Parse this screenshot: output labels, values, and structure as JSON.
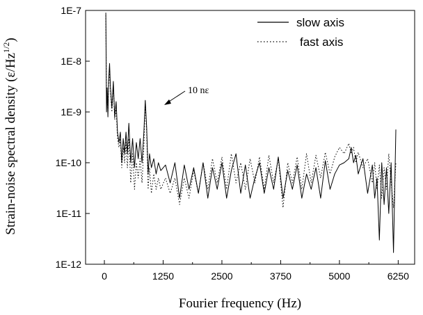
{
  "chart_data": {
    "type": "line",
    "title": "",
    "xlabel": "Fourier frequency (Hz)",
    "ylabel": "Strain-noise spectral density (ε/Hz",
    "ylabel_exp": "1/2",
    "ylabel_close": ")",
    "xlim": [
      -400,
      6600
    ],
    "ylim_log10": [
      -12,
      -7
    ],
    "yscale": "log",
    "xticks": [
      0,
      1250,
      2500,
      3750,
      5000,
      6250
    ],
    "xtick_labels": [
      "0",
      "1250",
      "2500",
      "3750",
      "5000",
      "6250"
    ],
    "yticks_log10": [
      -12,
      -11,
      -10,
      -9,
      -8,
      -7
    ],
    "ytick_labels": [
      "1E-12",
      "1E-11",
      "1E-10",
      "1E-9",
      "1E-8",
      "1E-7"
    ],
    "grid": false,
    "legend_position": "top-right",
    "annotation": {
      "text": "10 nε",
      "x": 900,
      "y": 1.7e-09
    },
    "series": [
      {
        "name": "slow axis",
        "style": "solid",
        "x": [
          30,
          45,
          60,
          75,
          90,
          110,
          130,
          160,
          190,
          220,
          250,
          280,
          310,
          340,
          370,
          400,
          430,
          460,
          490,
          520,
          560,
          600,
          640,
          680,
          720,
          760,
          800,
          840,
          870,
          900,
          930,
          960,
          1000,
          1050,
          1100,
          1150,
          1200,
          1300,
          1400,
          1500,
          1600,
          1700,
          1800,
          1900,
          2000,
          2100,
          2200,
          2300,
          2400,
          2500,
          2600,
          2700,
          2800,
          2900,
          3000,
          3100,
          3200,
          3300,
          3400,
          3500,
          3600,
          3700,
          3800,
          3900,
          4000,
          4100,
          4200,
          4300,
          4400,
          4500,
          4600,
          4700,
          4800,
          4900,
          5000,
          5100,
          5200,
          5250,
          5300,
          5350,
          5400,
          5500,
          5600,
          5700,
          5750,
          5800,
          5850,
          5900,
          5950,
          6000,
          6050,
          6100,
          6150,
          6200
        ],
        "y": [
          9e-08,
          1e-09,
          3e-09,
          8e-10,
          4e-09,
          9e-09,
          3e-09,
          1.2e-09,
          4e-09,
          8e-10,
          1.6e-09,
          4e-10,
          2.5e-10,
          4e-10,
          1e-10,
          3e-10,
          1.5e-10,
          4e-10,
          1.5e-10,
          6e-10,
          1e-10,
          3e-10,
          8e-11,
          2.5e-10,
          1.2e-10,
          3e-10,
          1e-10,
          4e-10,
          1.7e-09,
          5e-10,
          6e-11,
          1.5e-10,
          8e-11,
          1.2e-10,
          6e-11,
          1e-10,
          7e-11,
          9e-11,
          4e-11,
          1e-10,
          2e-11,
          9e-11,
          3e-11,
          8e-11,
          2.5e-11,
          1e-10,
          2e-11,
          8e-11,
          3e-11,
          1e-10,
          2e-11,
          7e-11,
          1.5e-10,
          2.5e-11,
          9e-11,
          2e-11,
          5e-11,
          1e-10,
          2.5e-11,
          8e-11,
          3e-11,
          1.3e-10,
          2e-11,
          7e-11,
          3e-11,
          9e-11,
          2e-11,
          6e-11,
          3e-11,
          8e-11,
          2e-11,
          1.1e-10,
          3e-11,
          6e-11,
          9e-11,
          1e-10,
          1.2e-10,
          2e-10,
          1e-10,
          1.4e-10,
          6e-11,
          1.2e-10,
          2.5e-11,
          9e-11,
          2e-11,
          5e-11,
          3e-12,
          1e-10,
          1.5e-11,
          8e-11,
          1e-11,
          1e-10,
          1.7e-12,
          4.5e-10
        ]
      },
      {
        "name": "fast axis",
        "style": "dotted",
        "x": [
          30,
          45,
          60,
          75,
          90,
          110,
          130,
          160,
          190,
          220,
          250,
          280,
          310,
          340,
          370,
          400,
          430,
          460,
          490,
          520,
          560,
          600,
          640,
          680,
          720,
          760,
          800,
          840,
          870,
          900,
          930,
          960,
          1000,
          1050,
          1100,
          1150,
          1200,
          1300,
          1400,
          1500,
          1600,
          1700,
          1800,
          1900,
          2000,
          2100,
          2200,
          2300,
          2400,
          2500,
          2600,
          2700,
          2800,
          2900,
          3000,
          3100,
          3200,
          3300,
          3400,
          3500,
          3600,
          3700,
          3800,
          3900,
          4000,
          4100,
          4200,
          4300,
          4400,
          4500,
          4600,
          4700,
          4800,
          4900,
          5000,
          5100,
          5200,
          5250,
          5300,
          5350,
          5400,
          5500,
          5600,
          5700,
          5750,
          5800,
          5850,
          5900,
          5950,
          6000,
          6050,
          6100,
          6150,
          6200
        ],
        "y": [
          8e-08,
          1.5e-09,
          2.5e-09,
          1e-09,
          3e-09,
          7e-09,
          2.5e-09,
          1e-09,
          3e-09,
          7e-10,
          1.2e-09,
          3e-10,
          2e-10,
          3e-10,
          8e-11,
          2e-10,
          1e-10,
          2.5e-10,
          8e-11,
          3e-10,
          4e-11,
          1.5e-10,
          3e-11,
          1e-10,
          5e-11,
          1.2e-10,
          4e-11,
          2e-10,
          1.6e-09,
          4e-10,
          3e-11,
          8e-11,
          2.5e-11,
          6e-11,
          3e-11,
          5e-11,
          3e-11,
          5e-11,
          2.5e-11,
          5e-11,
          1.5e-11,
          5e-11,
          2e-11,
          7e-11,
          2.5e-11,
          1e-10,
          3e-11,
          1.2e-10,
          4e-11,
          1.3e-10,
          3e-11,
          1.5e-10,
          4e-11,
          1e-10,
          3e-11,
          1.2e-10,
          4e-11,
          1.3e-10,
          3e-11,
          1.4e-10,
          4e-11,
          1.2e-10,
          1.3e-11,
          1e-10,
          4e-11,
          1.3e-10,
          3e-11,
          1.5e-10,
          4e-11,
          1.4e-10,
          5e-11,
          1.6e-10,
          6e-11,
          1.3e-10,
          2e-10,
          1.5e-10,
          2.4e-10,
          1.5e-10,
          2e-10,
          1e-10,
          1.6e-10,
          8e-11,
          1.2e-10,
          4e-11,
          1e-10,
          3e-11,
          9e-11,
          2e-11,
          8e-11,
          3e-11,
          1.5e-10,
          4e-11,
          1.3e-11,
          1e-10
        ]
      }
    ]
  }
}
